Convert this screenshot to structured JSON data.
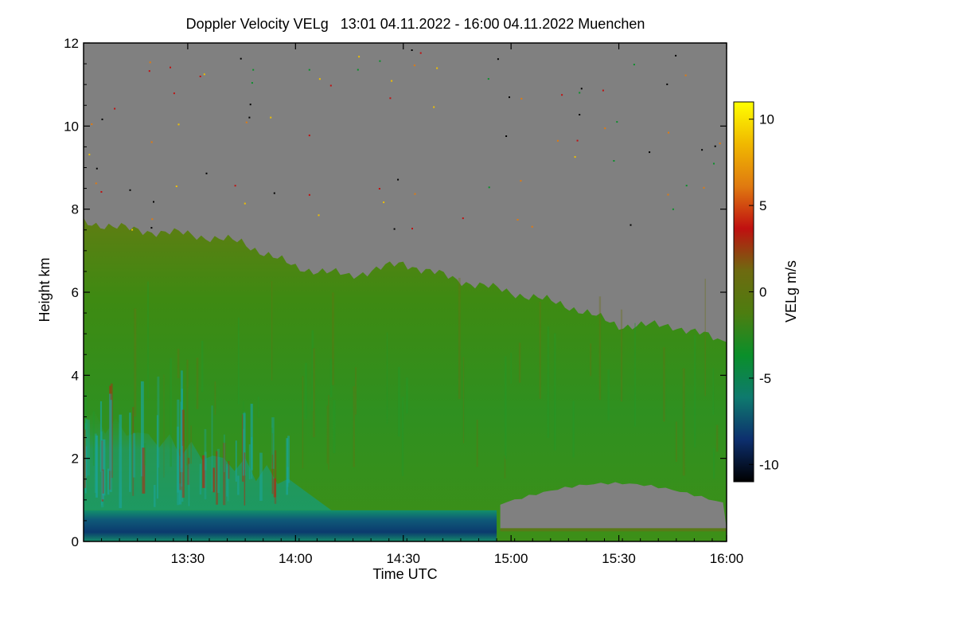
{
  "chart_data": {
    "type": "heatmap",
    "title": "Doppler Velocity VELg   13:01 04.11.2022 - 16:00 04.11.2022 Muenchen",
    "xlabel": "Time UTC",
    "ylabel": "Height km",
    "colorbar_label": "VELg m/s",
    "x_range": [
      "13:01",
      "16:00"
    ],
    "y_range": [
      0,
      12
    ],
    "x_ticks": [
      "13:30",
      "14:00",
      "14:30",
      "15:00",
      "15:30",
      "16:00"
    ],
    "y_ticks": [
      "0",
      "2",
      "4",
      "6",
      "8",
      "10",
      "12"
    ],
    "colorbar_range": [
      -11,
      11
    ],
    "colorbar_ticks": [
      "10",
      "5",
      "0",
      "-5",
      "-10"
    ],
    "colormap": [
      "#000000",
      "#0d2f6e",
      "#0e7a6e",
      "#0a8f2a",
      "#4d7d10",
      "#6e6a10",
      "#c01010",
      "#e07a10",
      "#f0b800",
      "#ffff00"
    ],
    "background_color": "#808080",
    "cloud_top_km": [
      {
        "time": "13:01",
        "height": 7.7
      },
      {
        "time": "13:15",
        "height": 7.5
      },
      {
        "time": "13:30",
        "height": 7.4
      },
      {
        "time": "13:45",
        "height": 7.2
      },
      {
        "time": "14:00",
        "height": 6.6
      },
      {
        "time": "14:15",
        "height": 6.4
      },
      {
        "time": "14:30",
        "height": 6.7
      },
      {
        "time": "14:45",
        "height": 6.3
      },
      {
        "time": "15:00",
        "height": 6.0
      },
      {
        "time": "15:15",
        "height": 5.7
      },
      {
        "time": "15:30",
        "height": 5.2
      },
      {
        "time": "15:45",
        "height": 5.2
      },
      {
        "time": "16:00",
        "height": 4.8
      }
    ],
    "low_layer_top_km": [
      {
        "time": "13:01",
        "height": 0.75
      },
      {
        "time": "14:56",
        "height": 0.75
      }
    ],
    "clear_gap": {
      "start": "14:57",
      "end": "16:00",
      "bottom_km": 0.3,
      "top_km": 1.4
    }
  }
}
